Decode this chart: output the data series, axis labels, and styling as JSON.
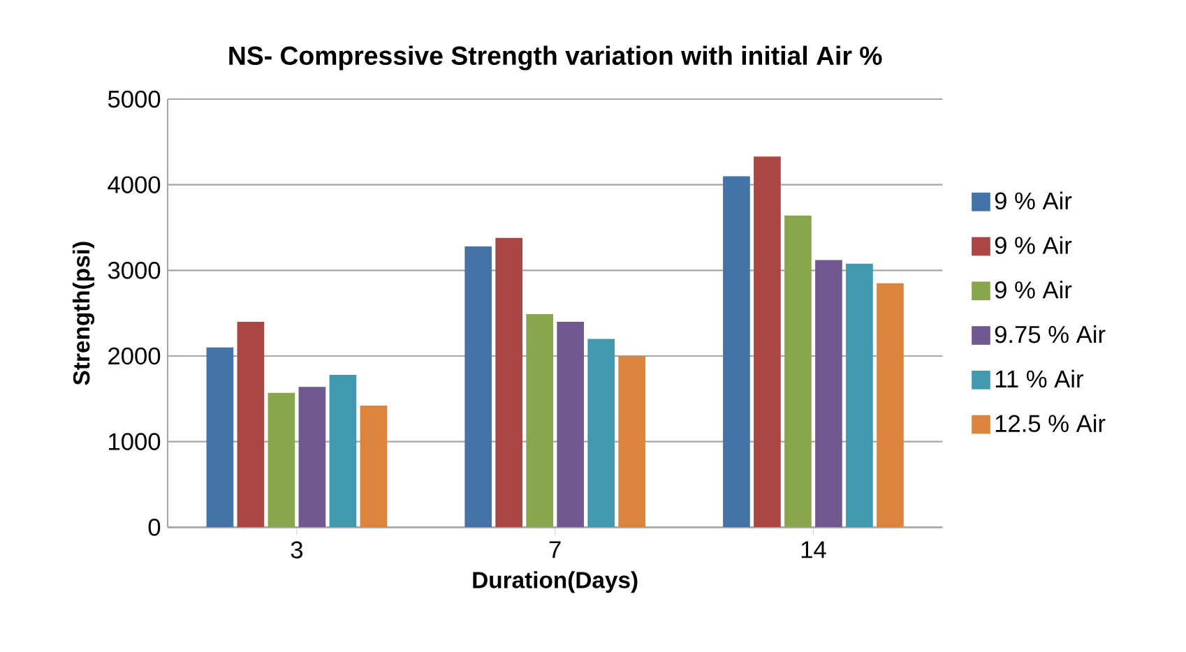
{
  "chart_data": {
    "type": "bar",
    "title": "NS- Compressive Strength variation with initial Air %",
    "xlabel": "Duration(Days)",
    "ylabel": "Strength(psi)",
    "categories": [
      "3",
      "7",
      "14"
    ],
    "series": [
      {
        "name": "9 % Air",
        "color": "#4572a7",
        "values": [
          2100,
          3280,
          4100
        ]
      },
      {
        "name": "9 % Air",
        "color": "#aa4643",
        "values": [
          2400,
          3380,
          4330
        ]
      },
      {
        "name": "9 % Air",
        "color": "#89a54e",
        "values": [
          1570,
          2490,
          3640
        ]
      },
      {
        "name": "9.75 % Air",
        "color": "#71588f",
        "values": [
          1640,
          2400,
          3120
        ]
      },
      {
        "name": "11 % Air",
        "color": "#4198af",
        "values": [
          1780,
          2200,
          3080
        ]
      },
      {
        "name": "12.5 % Air",
        "color": "#db843d",
        "values": [
          1420,
          2000,
          2850
        ]
      }
    ],
    "ylim": [
      0,
      5000
    ],
    "yticks": [
      0,
      1000,
      2000,
      3000,
      4000,
      5000
    ],
    "grid": "y",
    "legend": "right"
  }
}
